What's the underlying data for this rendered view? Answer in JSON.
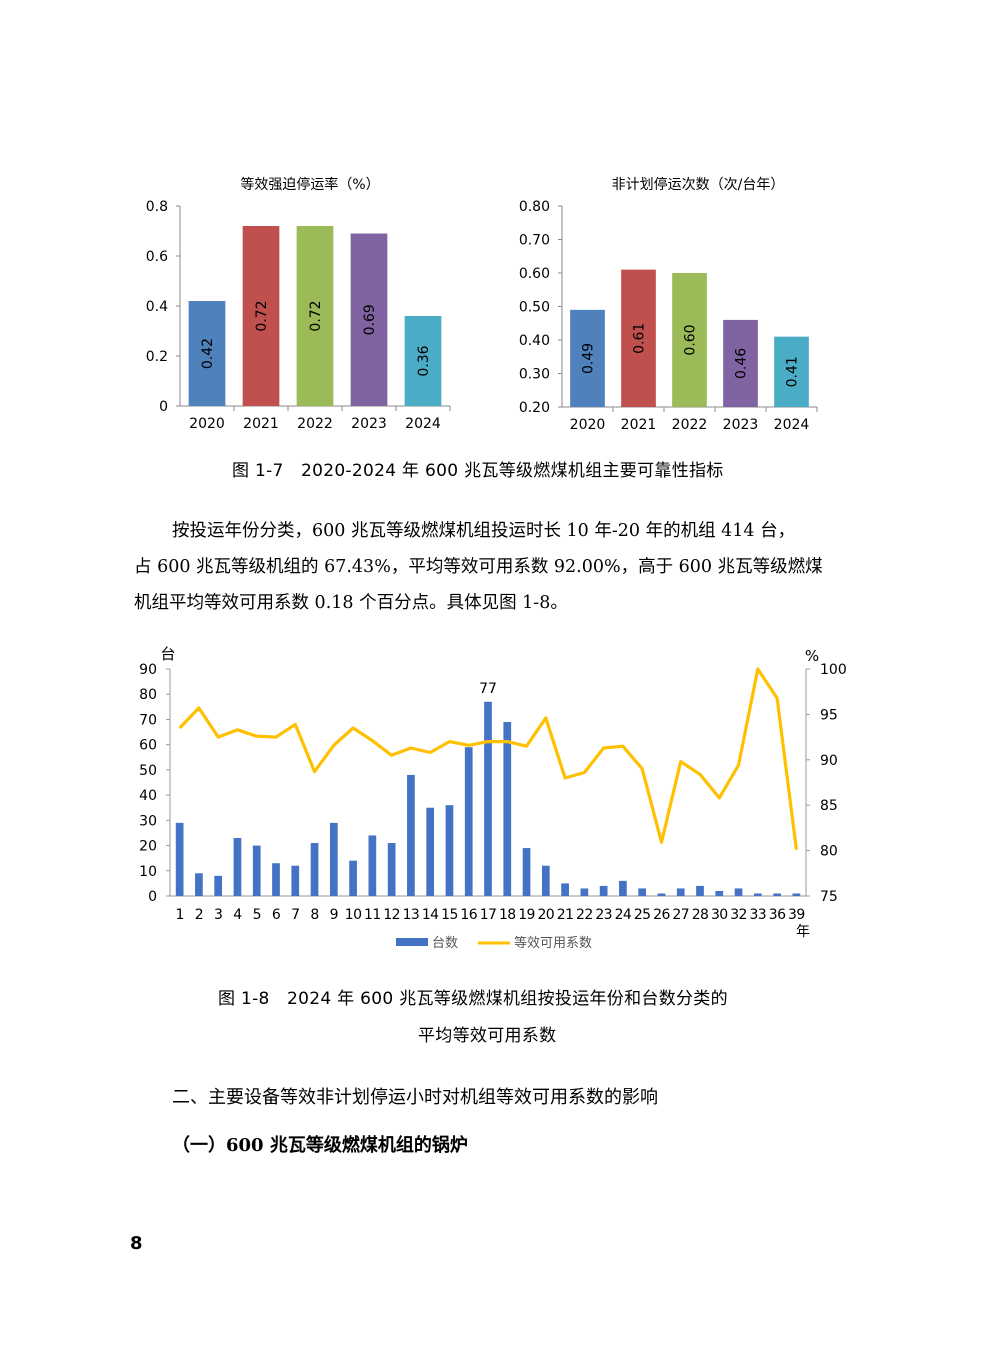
{
  "chart_a": {
    "title": "等效强迫停运率（%）",
    "chart_data": {
      "type": "bar",
      "title": "等效强迫停运率（%）",
      "categories": [
        "2020",
        "2021",
        "2022",
        "2023",
        "2024"
      ],
      "values": [
        0.42,
        0.72,
        0.72,
        0.69,
        0.36
      ],
      "labels": [
        "0.42",
        "0.72",
        "0.72",
        "0.69",
        "0.36"
      ],
      "colors": [
        "#4f81bd",
        "#c0504d",
        "#9bbb59",
        "#8064a2",
        "#4bacc6"
      ],
      "ylim": [
        0,
        0.8
      ],
      "yticks": [
        "0",
        "0.2",
        "0.4",
        "0.6",
        "0.8"
      ]
    }
  },
  "chart_b": {
    "title": "非计划停运次数（次/台年）",
    "chart_data": {
      "type": "bar",
      "title": "非计划停运次数（次/台年）",
      "categories": [
        "2020",
        "2021",
        "2022",
        "2023",
        "2024"
      ],
      "values": [
        0.49,
        0.61,
        0.6,
        0.46,
        0.41
      ],
      "labels": [
        "0.49",
        "0.61",
        "0.60",
        "0.46",
        "0.41"
      ],
      "colors": [
        "#4f81bd",
        "#c0504d",
        "#9bbb59",
        "#8064a2",
        "#4bacc6"
      ],
      "ylim": [
        0.2,
        0.8
      ],
      "yticks": [
        "0.20",
        "0.30",
        "0.40",
        "0.50",
        "0.60",
        "0.70",
        "0.80"
      ]
    }
  },
  "caption_1_7": "图 1-7　2020-2024 年 600 兆瓦等级燃煤机组主要可靠性指标",
  "paragraph": {
    "line1": "按投运年份分类，600 兆瓦等级燃煤机组投运时长 10 年-20 年的机组 414 台，",
    "line2": "占 600 兆瓦等级机组的 67.43%，平均等效可用系数 92.00%，高于 600 兆瓦等级燃煤",
    "line3": "机组平均等效可用系数 0.18 个百分点。具体见图 1-8。"
  },
  "chart_c": {
    "chart_data": {
      "type": "bar",
      "categories": [
        "1",
        "2",
        "3",
        "4",
        "5",
        "6",
        "7",
        "8",
        "9",
        "10",
        "11",
        "12",
        "13",
        "14",
        "15",
        "16",
        "17",
        "18",
        "19",
        "20",
        "21",
        "22",
        "23",
        "24",
        "25",
        "26",
        "27",
        "28",
        "30",
        "32",
        "33",
        "36",
        "39"
      ],
      "series": [
        {
          "name": "台数",
          "type": "bar",
          "axis": "left",
          "color": "#4472c4",
          "values": [
            29,
            9,
            8,
            23,
            20,
            13,
            12,
            21,
            29,
            14,
            24,
            21,
            48,
            35,
            36,
            59,
            77,
            69,
            19,
            12,
            5,
            3,
            4,
            6,
            3,
            1,
            3,
            4,
            2,
            3,
            1,
            1,
            1
          ]
        },
        {
          "name": "等效可用系数",
          "type": "line",
          "axis": "right",
          "color": "#ffc000",
          "values": [
            93.5,
            95.7,
            92.5,
            93.3,
            92.6,
            92.5,
            93.9,
            88.7,
            91.6,
            93.5,
            92.1,
            90.5,
            91.3,
            90.8,
            92.0,
            91.6,
            92.0,
            92.0,
            91.5,
            94.6,
            88.0,
            88.6,
            91.3,
            91.5,
            89.0,
            80.9,
            89.8,
            88.4,
            85.8,
            89.4,
            100.0,
            96.8,
            80.1
          ]
        }
      ],
      "y_left": {
        "label": "台",
        "ylim": [
          0,
          90
        ],
        "ticks": [
          "0",
          "10",
          "20",
          "30",
          "40",
          "50",
          "60",
          "70",
          "80",
          "90"
        ]
      },
      "y_right": {
        "label": "%",
        "ylim": [
          75,
          100
        ],
        "ticks": [
          "75",
          "80",
          "85",
          "90",
          "95",
          "100"
        ]
      },
      "xlabel": "年",
      "annotation": "77",
      "legend": {
        "placement": "bottom",
        "bar": "台数",
        "line": "等效可用系数"
      }
    }
  },
  "caption_1_8_line1": "图 1-8　2024 年 600 兆瓦等级燃煤机组按投运年份和台数分类的",
  "caption_1_8_line2": "平均等效可用系数",
  "heading_2": "二、主要设备等效非计划停运小时对机组等效可用系数的影响",
  "heading_2_1": "（一）600 兆瓦等级燃煤机组的锅炉",
  "page_number": "8"
}
